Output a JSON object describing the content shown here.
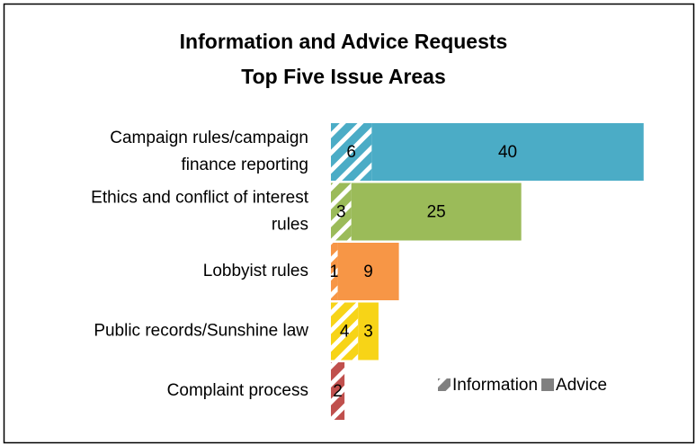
{
  "chart_data": {
    "type": "stacked-bar-horizontal",
    "title": [
      "Information and Advice Requests",
      "Top Five Issue Areas"
    ],
    "categories": [
      [
        "Campaign rules/campaign",
        "finance reporting"
      ],
      [
        "Ethics and conflict of interest",
        "rules"
      ],
      [
        "Lobbyist rules"
      ],
      [
        "Public records/Sunshine law"
      ],
      [
        "Complaint process"
      ]
    ],
    "category_colors": [
      "#4bacc6",
      "#9bbb59",
      "#f79646",
      "#f7d417",
      "#c0504d"
    ],
    "series": [
      {
        "name": "Information",
        "color": "#808080",
        "hatched": true,
        "values": [
          6,
          3,
          1,
          4,
          2
        ]
      },
      {
        "name": "Advice",
        "color": "#808080",
        "hatched": false,
        "values": [
          40,
          25,
          9,
          3,
          null
        ]
      }
    ],
    "xlim": [
      0,
      50
    ],
    "legend": "lower right"
  }
}
